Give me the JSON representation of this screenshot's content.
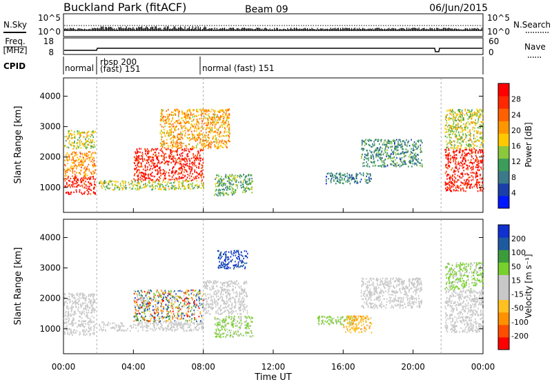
{
  "header": {
    "station": "Buckland Park (fitACF)",
    "beam": "Beam 09",
    "date": "06/Jun/2015"
  },
  "noise_panel": {
    "left_label": "N.Sky",
    "right_label": "N.Search",
    "left_ticks": [
      "10^5",
      "10^0"
    ],
    "right_ticks": [
      "10^5",
      "10^0"
    ]
  },
  "freq_panel": {
    "label_line1": "Freq.",
    "label_line2": "[MHz]",
    "left_ticks": [
      "18",
      "8"
    ],
    "right_label": "Nave",
    "right_ticks": [
      "60",
      "0"
    ]
  },
  "cpid": {
    "label": "CPID",
    "segments": [
      {
        "start_hr": 0.0,
        "text": "normal"
      },
      {
        "start_hr": 1.9,
        "text": "rbsp 200",
        "text2": "(fast) 151"
      },
      {
        "start_hr": 8.0,
        "text": "normal (fast)  151"
      }
    ]
  },
  "x_axis": {
    "title": "Time UT",
    "ticks": [
      "00:00",
      "04:00",
      "08:00",
      "12:00",
      "16:00",
      "20:00",
      "00:00"
    ]
  },
  "colors": {
    "power_scale": [
      "#0018ff",
      "#1a3fa8",
      "#3a7a8a",
      "#3c9c5a",
      "#8cc83c",
      "#ffc800",
      "#ff9600",
      "#ff6000",
      "#ff2800",
      "#ff0000"
    ],
    "velocity_scale": [
      "#ff0000",
      "#ff4d00",
      "#ff9000",
      "#ffc020",
      "#c8c8c8",
      "#c8c8c8",
      "#78d02c",
      "#3c9c3c",
      "#1e5aa0",
      "#1030d0"
    ],
    "ground_scatter": "#c8c8c8"
  },
  "chart_data": [
    {
      "type": "heatmap",
      "title": "Power",
      "ylabel": "Slant Range [km]",
      "ylim": [
        180,
        4600
      ],
      "yticks": [
        "1000",
        "2000",
        "3000",
        "4000"
      ],
      "x_range_hr": [
        0,
        24
      ],
      "colorbar": {
        "label": "Power [dB]",
        "ticks": [
          "4",
          "8",
          "12",
          "16",
          "20",
          "24",
          "28"
        ],
        "range": [
          0,
          32
        ]
      },
      "regions": [
        {
          "t0": 0.0,
          "t1": 1.8,
          "r0": 800,
          "r1": 1400,
          "value": 29
        },
        {
          "t0": 0.0,
          "t1": 1.8,
          "r0": 1400,
          "r1": 2200,
          "value": 21
        },
        {
          "t0": 0.0,
          "t1": 1.8,
          "r0": 2300,
          "r1": 2900,
          "value": 16
        },
        {
          "t0": 2.0,
          "t1": 8.0,
          "r0": 950,
          "r1": 1250,
          "value": 15
        },
        {
          "t0": 4.0,
          "t1": 8.0,
          "r0": 1250,
          "r1": 2300,
          "value": 29
        },
        {
          "t0": 5.5,
          "t1": 9.5,
          "r0": 2300,
          "r1": 3600,
          "value": 20
        },
        {
          "t0": 8.6,
          "t1": 10.8,
          "r0": 750,
          "r1": 1450,
          "value": 12
        },
        {
          "t0": 15.0,
          "t1": 17.6,
          "r0": 1150,
          "r1": 1500,
          "value": 8
        },
        {
          "t0": 17.0,
          "t1": 20.5,
          "r0": 1700,
          "r1": 2600,
          "value": 10
        },
        {
          "t0": 21.8,
          "t1": 24.0,
          "r0": 900,
          "r1": 2300,
          "value": 29
        },
        {
          "t0": 21.8,
          "t1": 24.0,
          "r0": 2300,
          "r1": 3600,
          "value": 16
        }
      ]
    },
    {
      "type": "heatmap",
      "title": "Velocity",
      "ylabel": "Slant Range [km]",
      "ylim": [
        180,
        4600
      ],
      "yticks": [
        "1000",
        "2000",
        "3000",
        "4000"
      ],
      "x_range_hr": [
        0,
        24
      ],
      "colorbar": {
        "label": "Velocity [m s⁻¹]",
        "ticks": [
          "-200",
          "-100",
          "-50",
          "-15",
          "15",
          "50",
          "100",
          "200"
        ],
        "range": [
          -250,
          250
        ]
      },
      "regions": [
        {
          "t0": 0.0,
          "t1": 1.8,
          "r0": 800,
          "r1": 2200,
          "value": 0
        },
        {
          "t0": 2.0,
          "t1": 8.0,
          "r0": 950,
          "r1": 1250,
          "value": 0
        },
        {
          "t0": 4.0,
          "t1": 8.0,
          "r0": 1250,
          "r1": 2300,
          "value": -120
        },
        {
          "t0": 8.0,
          "t1": 10.5,
          "r0": 1500,
          "r1": 2600,
          "value": 0
        },
        {
          "t0": 8.8,
          "t1": 10.5,
          "r0": 3000,
          "r1": 3600,
          "value": 200
        },
        {
          "t0": 8.6,
          "t1": 10.8,
          "r0": 750,
          "r1": 1450,
          "value": 60
        },
        {
          "t0": 14.5,
          "t1": 16.5,
          "r0": 1150,
          "r1": 1450,
          "value": 60
        },
        {
          "t0": 16.0,
          "t1": 17.6,
          "r0": 900,
          "r1": 1450,
          "value": -80
        },
        {
          "t0": 17.0,
          "t1": 20.5,
          "r0": 1700,
          "r1": 2700,
          "value": 0
        },
        {
          "t0": 21.8,
          "t1": 24.0,
          "r0": 900,
          "r1": 2300,
          "value": 0
        },
        {
          "t0": 21.8,
          "t1": 24.0,
          "r0": 2300,
          "r1": 3200,
          "value": 60
        }
      ]
    }
  ]
}
